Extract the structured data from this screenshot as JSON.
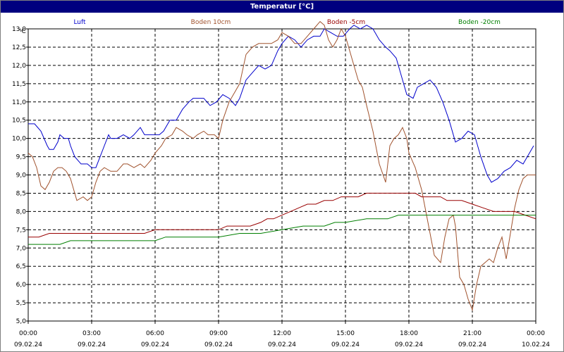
{
  "chart_data": {
    "type": "line",
    "title": "Temperatur [°C]",
    "ylabel": "°C",
    "ylim": [
      5.0,
      13.0
    ],
    "yticks": [
      "5,0",
      "5,5",
      "6,0",
      "6,5",
      "7,0",
      "7,5",
      "8,0",
      "8,5",
      "9,0",
      "9,5",
      "10,0",
      "10,5",
      "11,0",
      "11,5",
      "12,0",
      "12,5",
      "13,0"
    ],
    "xlim_hours": [
      0,
      24
    ],
    "xticks": [
      {
        "time": "00:00",
        "date": "09.02.24"
      },
      {
        "time": "03:00",
        "date": "09.02.24"
      },
      {
        "time": "06:00",
        "date": "09.02.24"
      },
      {
        "time": "09:00",
        "date": "09.02.24"
      },
      {
        "time": "12:00",
        "date": "09.02.24"
      },
      {
        "time": "15:00",
        "date": "09.02.24"
      },
      {
        "time": "18:00",
        "date": "09.02.24"
      },
      {
        "time": "21:00",
        "date": "09.02.24"
      },
      {
        "time": "00:00",
        "date": "10.02.24"
      }
    ],
    "grid": true,
    "legend_position": "top",
    "series": [
      {
        "name": "Luft",
        "color": "#0000cc",
        "x": [
          0,
          0.3,
          0.6,
          0.9,
          1.0,
          1.2,
          1.4,
          1.5,
          1.7,
          1.9,
          2.0,
          2.2,
          2.5,
          2.8,
          3.0,
          3.2,
          3.4,
          3.6,
          3.8,
          3.9,
          4.2,
          4.5,
          4.8,
          5.0,
          5.3,
          5.5,
          5.7,
          6.0,
          6.2,
          6.4,
          6.7,
          7.0,
          7.3,
          7.6,
          7.8,
          8.0,
          8.3,
          8.6,
          8.9,
          9.2,
          9.5,
          9.8,
          10.0,
          10.3,
          10.6,
          10.9,
          11.2,
          11.5,
          11.8,
          12.0,
          12.3,
          12.6,
          12.9,
          13.2,
          13.5,
          13.8,
          14.0,
          14.3,
          14.6,
          14.9,
          15.2,
          15.4,
          15.7,
          16.0,
          16.3,
          16.6,
          16.9,
          17.1,
          17.4,
          17.7,
          17.9,
          18.2,
          18.4,
          18.7,
          19.0,
          19.3,
          19.6,
          19.9,
          20.2,
          20.5,
          20.8,
          21.1,
          21.4,
          21.7,
          21.9,
          22.2,
          22.5,
          22.8,
          23.1,
          23.4,
          23.7,
          23.9
        ],
        "y": [
          10.4,
          10.4,
          10.2,
          9.8,
          9.7,
          9.7,
          9.9,
          10.1,
          10.0,
          10.0,
          9.8,
          9.5,
          9.3,
          9.3,
          9.2,
          9.2,
          9.5,
          9.8,
          10.1,
          10.0,
          10.0,
          10.1,
          10.0,
          10.1,
          10.3,
          10.1,
          10.1,
          10.1,
          10.1,
          10.2,
          10.5,
          10.5,
          10.8,
          11.0,
          11.1,
          11.1,
          11.1,
          10.9,
          11.0,
          11.2,
          11.1,
          10.9,
          11.1,
          11.6,
          11.8,
          12.0,
          11.9,
          12.0,
          12.4,
          12.6,
          12.8,
          12.7,
          12.5,
          12.7,
          12.8,
          12.8,
          13.0,
          12.9,
          12.8,
          12.8,
          13.0,
          13.1,
          13.0,
          13.1,
          13.0,
          12.7,
          12.5,
          12.4,
          12.2,
          11.6,
          11.2,
          11.1,
          11.4,
          11.5,
          11.6,
          11.4,
          11.0,
          10.5,
          9.9,
          10.0,
          10.2,
          10.1,
          9.5,
          9.0,
          8.8,
          8.9,
          9.1,
          9.2,
          9.4,
          9.3,
          9.6,
          9.8
        ]
      },
      {
        "name": "Boden 10cm",
        "color": "#a0522d",
        "x": [
          0,
          0.2,
          0.4,
          0.6,
          0.8,
          1.0,
          1.2,
          1.4,
          1.6,
          1.8,
          2.0,
          2.3,
          2.6,
          2.8,
          3.0,
          3.2,
          3.4,
          3.6,
          3.9,
          4.2,
          4.5,
          4.7,
          5.0,
          5.3,
          5.5,
          5.8,
          6.0,
          6.3,
          6.5,
          6.8,
          7.0,
          7.3,
          7.5,
          7.8,
          8.0,
          8.3,
          8.5,
          8.8,
          9.0,
          9.2,
          9.5,
          9.8,
          10.0,
          10.3,
          10.6,
          10.9,
          11.2,
          11.5,
          11.8,
          12.0,
          12.3,
          12.6,
          12.9,
          13.2,
          13.5,
          13.8,
          14.0,
          14.2,
          14.4,
          14.6,
          14.8,
          15.0,
          15.2,
          15.4,
          15.6,
          15.8,
          16.0,
          16.3,
          16.6,
          16.9,
          17.1,
          17.3,
          17.5,
          17.7,
          17.9,
          18.0,
          18.3,
          18.6,
          18.9,
          19.2,
          19.5,
          19.7,
          19.9,
          20.1,
          20.2,
          20.4,
          20.6,
          20.8,
          21.0,
          21.2,
          21.4,
          21.6,
          21.8,
          22.0,
          22.2,
          22.4,
          22.6,
          22.8,
          23.0,
          23.2,
          23.4,
          23.6,
          23.8,
          24.0
        ],
        "y": [
          9.6,
          9.5,
          9.2,
          8.7,
          8.6,
          8.8,
          9.1,
          9.2,
          9.2,
          9.1,
          8.9,
          8.3,
          8.4,
          8.3,
          8.4,
          8.8,
          9.1,
          9.2,
          9.1,
          9.1,
          9.3,
          9.3,
          9.2,
          9.3,
          9.2,
          9.4,
          9.6,
          9.8,
          10.0,
          10.1,
          10.3,
          10.2,
          10.1,
          10.0,
          10.1,
          10.2,
          10.1,
          10.1,
          10.0,
          10.5,
          11.0,
          11.3,
          11.5,
          12.3,
          12.5,
          12.6,
          12.6,
          12.6,
          12.7,
          12.9,
          12.8,
          12.6,
          12.6,
          12.8,
          13.0,
          13.2,
          13.1,
          12.7,
          12.5,
          12.7,
          13.0,
          12.8,
          12.4,
          12.0,
          11.6,
          11.4,
          10.9,
          10.2,
          9.3,
          8.8,
          9.8,
          10.0,
          10.1,
          10.3,
          10.0,
          9.6,
          9.2,
          8.6,
          7.7,
          6.8,
          6.6,
          7.3,
          7.8,
          7.9,
          7.6,
          6.2,
          6.0,
          5.6,
          5.3,
          6.0,
          6.5,
          6.6,
          6.7,
          6.6,
          7.0,
          7.3,
          6.7,
          7.4,
          8.1,
          8.6,
          8.9,
          9.0,
          9.0,
          9.0
        ]
      },
      {
        "name": "Boden -5cm",
        "color": "#990000",
        "x": [
          0,
          0.5,
          1.0,
          2.0,
          3.0,
          4.0,
          5.0,
          5.5,
          6.0,
          7.0,
          8.0,
          9.0,
          9.4,
          10.0,
          10.5,
          11.0,
          11.3,
          11.6,
          12.0,
          12.4,
          12.8,
          13.2,
          13.6,
          14.0,
          14.4,
          14.8,
          15.2,
          15.6,
          16.0,
          16.5,
          17.0,
          17.5,
          18.0,
          18.3,
          18.6,
          19.0,
          19.5,
          19.8,
          20.0,
          20.5,
          21.0,
          21.5,
          22.0,
          22.5,
          23.0,
          23.5,
          24.0
        ],
        "y": [
          7.3,
          7.3,
          7.4,
          7.4,
          7.4,
          7.4,
          7.4,
          7.4,
          7.5,
          7.5,
          7.5,
          7.5,
          7.6,
          7.6,
          7.6,
          7.7,
          7.8,
          7.8,
          7.9,
          8.0,
          8.1,
          8.2,
          8.2,
          8.3,
          8.3,
          8.4,
          8.4,
          8.4,
          8.5,
          8.5,
          8.5,
          8.5,
          8.5,
          8.5,
          8.4,
          8.4,
          8.4,
          8.3,
          8.3,
          8.3,
          8.2,
          8.1,
          8.0,
          8.0,
          8.0,
          7.9,
          7.8
        ]
      },
      {
        "name": "Boden -20cm",
        "color": "#007f00",
        "x": [
          0,
          1.5,
          2.0,
          4.0,
          6.0,
          6.5,
          7.0,
          8.0,
          9.0,
          10.0,
          11.0,
          12.0,
          13.0,
          14.0,
          14.5,
          15.0,
          16.0,
          17.0,
          17.5,
          18.0,
          19.0,
          20.0,
          21.0,
          22.0,
          23.0,
          24.0
        ],
        "y": [
          7.1,
          7.1,
          7.2,
          7.2,
          7.2,
          7.3,
          7.3,
          7.3,
          7.3,
          7.4,
          7.4,
          7.5,
          7.6,
          7.6,
          7.7,
          7.7,
          7.8,
          7.8,
          7.9,
          7.9,
          7.9,
          7.9,
          7.9,
          7.9,
          7.9,
          7.9
        ]
      }
    ]
  }
}
